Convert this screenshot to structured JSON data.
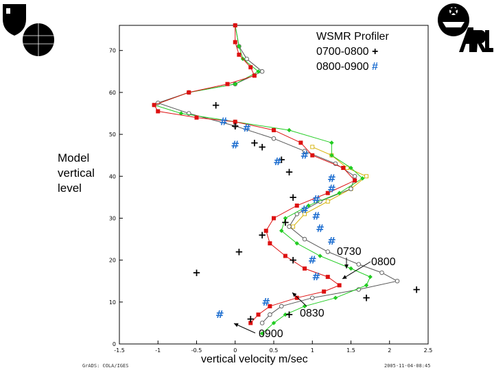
{
  "logos": {
    "left_shield": "shield-logo",
    "left_globe": "globe-logo",
    "right_emblem": "star-emblem-logo",
    "right_text": "ARL"
  },
  "y_axis_label": [
    "Model",
    "vertical",
    "level"
  ],
  "footer": {
    "left": "GrADS: COLA/IGES",
    "right": "2005-11-04-08:45"
  },
  "colors": {
    "red": "#dd1111",
    "green": "#22cc22",
    "gray": "#555555",
    "yellow": "#d4b000",
    "blue": "#1f6fd0"
  },
  "chart_data": {
    "type": "line",
    "xlabel": "vertical velocity m/sec",
    "ylabel": "Model vertical level",
    "xlim": [
      -1.5,
      2.5
    ],
    "ylim": [
      0,
      76
    ],
    "xticks": [
      "-1.5",
      "-1",
      "-0.5",
      "0",
      "0.5",
      "1",
      "1.5",
      "2",
      "2.5"
    ],
    "yticks": [
      "0",
      "10",
      "20",
      "30",
      "40",
      "50",
      "60",
      "70"
    ],
    "legend": {
      "title": "WSMR Profiler",
      "entries": [
        {
          "label": "0700-0800",
          "marker": "+"
        },
        {
          "label": "0800-0900",
          "marker": "#"
        }
      ]
    },
    "annotations": [
      "0730",
      "0800",
      "0830",
      "0900"
    ],
    "series": [
      {
        "name": "0730",
        "color": "gray",
        "marker": "open-circle",
        "points": [
          [
            0.35,
            5
          ],
          [
            0.45,
            7
          ],
          [
            0.6,
            9
          ],
          [
            1.0,
            11
          ],
          [
            1.6,
            13
          ],
          [
            2.1,
            15
          ],
          [
            1.9,
            17
          ],
          [
            1.6,
            19
          ],
          [
            1.2,
            22
          ],
          [
            0.9,
            25
          ],
          [
            0.7,
            28
          ],
          [
            0.8,
            31
          ],
          [
            1.1,
            34
          ],
          [
            1.5,
            37
          ],
          [
            1.55,
            40
          ],
          [
            1.3,
            43
          ],
          [
            0.9,
            46
          ],
          [
            0.5,
            49
          ],
          [
            0.0,
            52
          ],
          [
            -0.6,
            55
          ],
          [
            -1.0,
            57.5
          ],
          [
            -0.6,
            60
          ],
          [
            0.0,
            62
          ],
          [
            0.35,
            65
          ],
          [
            0.15,
            68
          ],
          [
            0.05,
            71
          ],
          [
            0.0,
            76
          ]
        ]
      },
      {
        "name": "0800",
        "color": "green",
        "marker": "filled-diamond",
        "points": [
          [
            0.35,
            2.5
          ],
          [
            0.5,
            5
          ],
          [
            0.65,
            7
          ],
          [
            0.9,
            9
          ],
          [
            1.3,
            11
          ],
          [
            1.7,
            14
          ],
          [
            1.75,
            16
          ],
          [
            1.5,
            18
          ],
          [
            1.1,
            21
          ],
          [
            0.8,
            24
          ],
          [
            0.6,
            27
          ],
          [
            0.65,
            30
          ],
          [
            0.95,
            33
          ],
          [
            1.35,
            36
          ],
          [
            1.65,
            39.5
          ],
          [
            1.5,
            42
          ],
          [
            1.25,
            45
          ],
          [
            1.25,
            48
          ],
          [
            0.7,
            51
          ],
          [
            0.0,
            53
          ],
          [
            -0.7,
            55
          ],
          [
            -1.05,
            57
          ],
          [
            -0.6,
            60
          ],
          [
            0.0,
            62
          ],
          [
            0.3,
            65
          ],
          [
            0.1,
            68
          ],
          [
            0.05,
            71
          ],
          [
            0.0,
            76
          ]
        ]
      },
      {
        "name": "0830",
        "color": "yellow",
        "marker": "open-square",
        "points": [
          [
            1.0,
            47
          ],
          [
            1.25,
            45
          ],
          [
            1.45,
            42
          ],
          [
            1.7,
            40
          ],
          [
            1.5,
            37
          ],
          [
            1.2,
            34
          ],
          [
            0.9,
            31
          ],
          [
            0.75,
            28
          ]
        ]
      },
      {
        "name": "0900",
        "color": "red",
        "marker": "filled-square",
        "points": [
          [
            0.2,
            5
          ],
          [
            0.3,
            7
          ],
          [
            0.45,
            9
          ],
          [
            0.8,
            11
          ],
          [
            1.15,
            12.5
          ],
          [
            1.35,
            14
          ],
          [
            1.2,
            16
          ],
          [
            0.9,
            18
          ],
          [
            0.65,
            21
          ],
          [
            0.45,
            24
          ],
          [
            0.4,
            27
          ],
          [
            0.5,
            30
          ],
          [
            0.8,
            33
          ],
          [
            1.2,
            36
          ],
          [
            1.55,
            39
          ],
          [
            1.4,
            42
          ],
          [
            1.0,
            45
          ],
          [
            0.85,
            48
          ],
          [
            0.5,
            51
          ],
          [
            0.0,
            53
          ],
          [
            -0.5,
            54
          ],
          [
            -1.0,
            55.5
          ],
          [
            -1.05,
            57
          ],
          [
            -0.6,
            60
          ],
          [
            -0.1,
            62
          ],
          [
            0.25,
            64
          ],
          [
            0.2,
            66
          ],
          [
            0.05,
            69
          ],
          [
            0.0,
            72
          ],
          [
            0.0,
            76
          ]
        ]
      }
    ],
    "profiler_0700_0800": [
      [
        -0.25,
        57
      ],
      [
        0.0,
        52
      ],
      [
        0.25,
        48
      ],
      [
        0.35,
        47
      ],
      [
        0.6,
        44
      ],
      [
        0.7,
        41
      ],
      [
        0.75,
        35
      ],
      [
        0.65,
        29
      ],
      [
        0.35,
        26
      ],
      [
        0.05,
        22
      ],
      [
        0.75,
        20
      ],
      [
        -0.5,
        17
      ],
      [
        1.7,
        11
      ],
      [
        2.35,
        13
      ],
      [
        0.7,
        7
      ],
      [
        0.2,
        6
      ]
    ],
    "profiler_0800_0900": [
      [
        -0.15,
        53
      ],
      [
        0.15,
        51.5
      ],
      [
        0.0,
        47.5
      ],
      [
        0.9,
        45
      ],
      [
        0.55,
        43.5
      ],
      [
        1.25,
        39.5
      ],
      [
        1.25,
        37
      ],
      [
        1.05,
        34.5
      ],
      [
        0.9,
        32
      ],
      [
        1.05,
        30.5
      ],
      [
        1.1,
        27.5
      ],
      [
        1.25,
        24.5
      ],
      [
        1.0,
        20
      ],
      [
        1.05,
        16
      ],
      [
        0.4,
        10
      ],
      [
        -0.2,
        7
      ]
    ]
  }
}
